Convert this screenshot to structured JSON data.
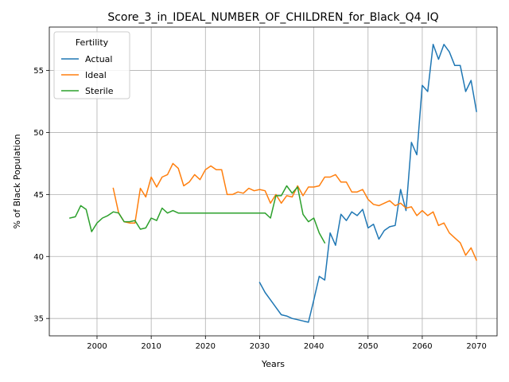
{
  "chart_data": {
    "type": "line",
    "title": "Score_3_in_IDEAL_NUMBER_OF_CHILDREN_for_Black_Q4_IQ",
    "xlabel": "Years",
    "ylabel": "% of Black Population",
    "xlim": [
      1991.2,
      2073.8
    ],
    "ylim": [
      33.6,
      58.5
    ],
    "xticks": [
      2000,
      2010,
      2020,
      2030,
      2040,
      2050,
      2060,
      2070
    ],
    "yticks": [
      35,
      40,
      45,
      50,
      55
    ],
    "grid": true,
    "legend": {
      "title": "Fertility",
      "placement": "top-left"
    },
    "series": [
      {
        "name": "Actual",
        "color": "#1f77b4",
        "x": [
          2030,
          2031,
          2032,
          2033,
          2034,
          2035,
          2036,
          2037,
          2038,
          2039,
          2040,
          2041,
          2042,
          2043,
          2044,
          2045,
          2046,
          2047,
          2048,
          2049,
          2050,
          2051,
          2052,
          2053,
          2054,
          2055,
          2056,
          2057,
          2058,
          2059,
          2060,
          2061,
          2062,
          2063,
          2064,
          2065,
          2066,
          2067,
          2068,
          2069,
          2070
        ],
        "y": [
          37.9,
          37.1,
          36.5,
          35.9,
          35.3,
          35.2,
          35.0,
          34.9,
          34.8,
          34.7,
          36.5,
          38.4,
          38.1,
          41.9,
          40.9,
          43.4,
          42.9,
          43.6,
          43.3,
          43.8,
          42.3,
          42.6,
          41.4,
          42.1,
          42.4,
          42.5,
          45.4,
          43.7,
          49.2,
          48.2,
          53.8,
          53.3,
          57.1,
          55.9,
          57.1,
          56.5,
          55.4,
          55.4,
          53.3,
          54.2,
          51.7
        ]
      },
      {
        "name": "Ideal",
        "color": "#ff7f0e",
        "x": [
          2003,
          2004,
          2005,
          2006,
          2007,
          2008,
          2009,
          2010,
          2011,
          2012,
          2013,
          2014,
          2015,
          2016,
          2017,
          2018,
          2019,
          2020,
          2021,
          2022,
          2023,
          2024,
          2025,
          2026,
          2027,
          2028,
          2029,
          2030,
          2031,
          2032,
          2033,
          2034,
          2035,
          2036,
          2037,
          2038,
          2039,
          2040,
          2041,
          2042,
          2043,
          2044,
          2045,
          2046,
          2047,
          2048,
          2049,
          2050,
          2051,
          2052,
          2053,
          2054,
          2055,
          2056,
          2057,
          2058,
          2059,
          2060,
          2061,
          2062,
          2063,
          2064,
          2065,
          2066,
          2067,
          2068,
          2069,
          2070
        ],
        "y": [
          45.5,
          43.5,
          42.8,
          42.7,
          42.7,
          45.5,
          44.8,
          46.4,
          45.6,
          46.4,
          46.6,
          47.5,
          47.1,
          45.7,
          46.0,
          46.6,
          46.2,
          47.0,
          47.3,
          47.0,
          47.0,
          45.0,
          45.0,
          45.2,
          45.1,
          45.5,
          45.3,
          45.4,
          45.3,
          44.3,
          45.0,
          44.3,
          44.9,
          44.8,
          45.7,
          44.9,
          45.6,
          45.6,
          45.7,
          46.4,
          46.4,
          46.6,
          46.0,
          46.0,
          45.2,
          45.2,
          45.4,
          44.6,
          44.2,
          44.1,
          44.3,
          44.5,
          44.1,
          44.3,
          43.9,
          44.0,
          43.3,
          43.7,
          43.3,
          43.6,
          42.5,
          42.7,
          41.9,
          41.5,
          41.1,
          40.1,
          40.7,
          39.7
        ]
      },
      {
        "name": "Sterile",
        "color": "#2ca02c",
        "x": [
          1995,
          1996,
          1997,
          1998,
          1999,
          2000,
          2001,
          2002,
          2003,
          2004,
          2005,
          2006,
          2007,
          2008,
          2009,
          2010,
          2011,
          2012,
          2013,
          2014,
          2015,
          2016,
          2017,
          2018,
          2019,
          2020,
          2021,
          2022,
          2023,
          2024,
          2025,
          2026,
          2027,
          2028,
          2029,
          2030,
          2031,
          2032,
          2033,
          2034,
          2035,
          2036,
          2037,
          2038,
          2039,
          2040,
          2041,
          2042
        ],
        "y": [
          43.1,
          43.2,
          44.1,
          43.8,
          42.0,
          42.7,
          43.1,
          43.3,
          43.6,
          43.5,
          42.8,
          42.8,
          42.9,
          42.2,
          42.3,
          43.1,
          42.9,
          43.9,
          43.5,
          43.7,
          43.5,
          43.5,
          43.5,
          43.5,
          43.5,
          43.5,
          43.5,
          43.5,
          43.5,
          43.5,
          43.5,
          43.5,
          43.5,
          43.5,
          43.5,
          43.5,
          43.5,
          43.1,
          44.9,
          44.9,
          45.7,
          45.1,
          45.6,
          43.4,
          42.8,
          43.1,
          41.9,
          41.1
        ]
      }
    ]
  }
}
